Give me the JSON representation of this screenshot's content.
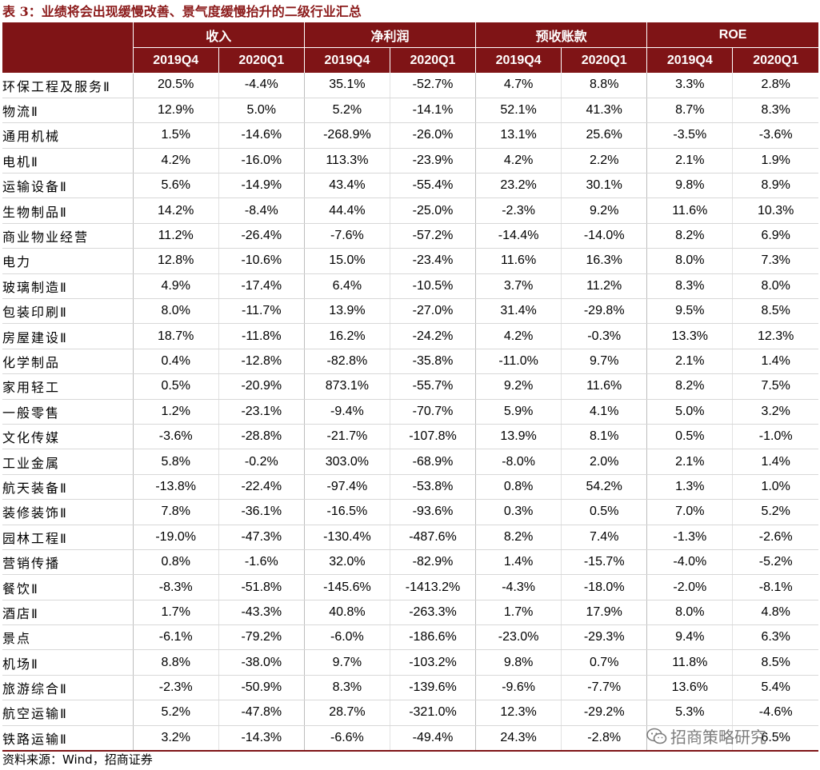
{
  "title": "表 3：业绩将会出现缓慢改善、景气度缓慢抬升的二级行业汇总",
  "table": {
    "groups": [
      "收入",
      "净利润",
      "预收账款",
      "ROE"
    ],
    "subheaders": [
      "2019Q4",
      "2020Q1",
      "2019Q4",
      "2020Q1",
      "2019Q4",
      "2020Q1",
      "2019Q4",
      "2020Q1"
    ],
    "rows": [
      {
        "name": "环保工程及服务Ⅱ",
        "values": [
          "20.5%",
          "-4.4%",
          "35.1%",
          "-52.7%",
          "4.7%",
          "8.8%",
          "3.3%",
          "2.8%"
        ]
      },
      {
        "name": "物流Ⅱ",
        "values": [
          "12.9%",
          "5.0%",
          "5.2%",
          "-14.1%",
          "52.1%",
          "41.3%",
          "8.7%",
          "8.3%"
        ]
      },
      {
        "name": "通用机械",
        "values": [
          "1.5%",
          "-14.6%",
          "-268.9%",
          "-26.0%",
          "13.1%",
          "25.6%",
          "-3.5%",
          "-3.6%"
        ]
      },
      {
        "name": "电机Ⅱ",
        "values": [
          "4.2%",
          "-16.0%",
          "113.3%",
          "-23.9%",
          "4.2%",
          "2.2%",
          "2.1%",
          "1.9%"
        ]
      },
      {
        "name": "运输设备Ⅱ",
        "values": [
          "5.6%",
          "-14.9%",
          "43.4%",
          "-55.4%",
          "23.2%",
          "30.1%",
          "9.8%",
          "8.9%"
        ]
      },
      {
        "name": "生物制品Ⅱ",
        "values": [
          "14.2%",
          "-8.4%",
          "44.4%",
          "-25.0%",
          "-2.3%",
          "9.2%",
          "11.6%",
          "10.3%"
        ]
      },
      {
        "name": "商业物业经营",
        "values": [
          "11.2%",
          "-26.4%",
          "-7.6%",
          "-57.2%",
          "-14.4%",
          "-14.0%",
          "8.2%",
          "6.9%"
        ]
      },
      {
        "name": "电力",
        "values": [
          "12.8%",
          "-10.6%",
          "15.0%",
          "-23.4%",
          "11.6%",
          "16.3%",
          "8.0%",
          "7.3%"
        ]
      },
      {
        "name": "玻璃制造Ⅱ",
        "values": [
          "4.9%",
          "-17.4%",
          "6.4%",
          "-10.5%",
          "3.7%",
          "11.2%",
          "8.3%",
          "8.0%"
        ]
      },
      {
        "name": "包装印刷Ⅱ",
        "values": [
          "8.0%",
          "-11.7%",
          "13.9%",
          "-27.0%",
          "31.4%",
          "-29.8%",
          "9.5%",
          "8.5%"
        ]
      },
      {
        "name": "房屋建设Ⅱ",
        "values": [
          "18.7%",
          "-11.8%",
          "16.2%",
          "-24.2%",
          "4.2%",
          "-0.3%",
          "13.3%",
          "12.3%"
        ]
      },
      {
        "name": "化学制品",
        "values": [
          "0.4%",
          "-12.8%",
          "-82.8%",
          "-35.8%",
          "-11.0%",
          "9.7%",
          "2.1%",
          "1.4%"
        ]
      },
      {
        "name": "家用轻工",
        "values": [
          "0.5%",
          "-20.9%",
          "873.1%",
          "-55.7%",
          "9.2%",
          "11.6%",
          "8.2%",
          "7.5%"
        ]
      },
      {
        "name": "一般零售",
        "values": [
          "1.2%",
          "-23.1%",
          "-9.4%",
          "-70.7%",
          "5.9%",
          "4.1%",
          "5.0%",
          "3.2%"
        ]
      },
      {
        "name": "文化传媒",
        "values": [
          "-3.6%",
          "-28.8%",
          "-21.7%",
          "-107.8%",
          "13.9%",
          "8.1%",
          "0.5%",
          "-1.0%"
        ]
      },
      {
        "name": "工业金属",
        "values": [
          "5.8%",
          "-0.2%",
          "303.0%",
          "-68.9%",
          "-8.0%",
          "2.0%",
          "2.1%",
          "1.4%"
        ]
      },
      {
        "name": "航天装备Ⅱ",
        "values": [
          "-13.8%",
          "-22.4%",
          "-97.4%",
          "-53.8%",
          "0.8%",
          "54.2%",
          "1.3%",
          "1.0%"
        ]
      },
      {
        "name": "装修装饰Ⅱ",
        "values": [
          "7.8%",
          "-36.1%",
          "-16.5%",
          "-93.6%",
          "0.3%",
          "0.5%",
          "7.0%",
          "5.2%"
        ]
      },
      {
        "name": "园林工程Ⅱ",
        "values": [
          "-19.0%",
          "-47.3%",
          "-130.4%",
          "-487.6%",
          "8.2%",
          "7.4%",
          "-1.3%",
          "-2.6%"
        ]
      },
      {
        "name": "营销传播",
        "values": [
          "0.8%",
          "-1.6%",
          "32.0%",
          "-82.9%",
          "1.4%",
          "-15.7%",
          "-4.0%",
          "-5.2%"
        ]
      },
      {
        "name": "餐饮Ⅱ",
        "values": [
          "-8.3%",
          "-51.8%",
          "-145.6%",
          "-1413.2%",
          "-4.3%",
          "-18.0%",
          "-2.0%",
          "-8.1%"
        ]
      },
      {
        "name": "酒店Ⅱ",
        "values": [
          "1.7%",
          "-43.3%",
          "40.8%",
          "-263.3%",
          "1.7%",
          "17.9%",
          "8.0%",
          "4.8%"
        ]
      },
      {
        "name": "景点",
        "values": [
          "-6.1%",
          "-79.2%",
          "-6.0%",
          "-186.6%",
          "-23.0%",
          "-29.3%",
          "9.4%",
          "6.3%"
        ]
      },
      {
        "name": "机场Ⅱ",
        "values": [
          "8.8%",
          "-38.0%",
          "9.7%",
          "-103.2%",
          "9.8%",
          "0.7%",
          "11.8%",
          "8.5%"
        ]
      },
      {
        "name": "旅游综合Ⅱ",
        "values": [
          "-2.3%",
          "-50.9%",
          "8.3%",
          "-139.6%",
          "-9.6%",
          "-7.7%",
          "13.6%",
          "5.4%"
        ]
      },
      {
        "name": "航空运输Ⅱ",
        "values": [
          "5.2%",
          "-47.8%",
          "28.7%",
          "-321.0%",
          "12.3%",
          "-29.2%",
          "5.3%",
          "-4.6%"
        ]
      },
      {
        "name": "铁路运输Ⅱ",
        "values": [
          "3.2%",
          "-14.3%",
          "-6.6%",
          "-49.4%",
          "24.3%",
          "-2.8%",
          "",
          "6.5%"
        ]
      }
    ]
  },
  "source": "资料来源：Wind，招商证券",
  "watermark": "招商策略研究",
  "watermark_icon": "wechat-icon"
}
